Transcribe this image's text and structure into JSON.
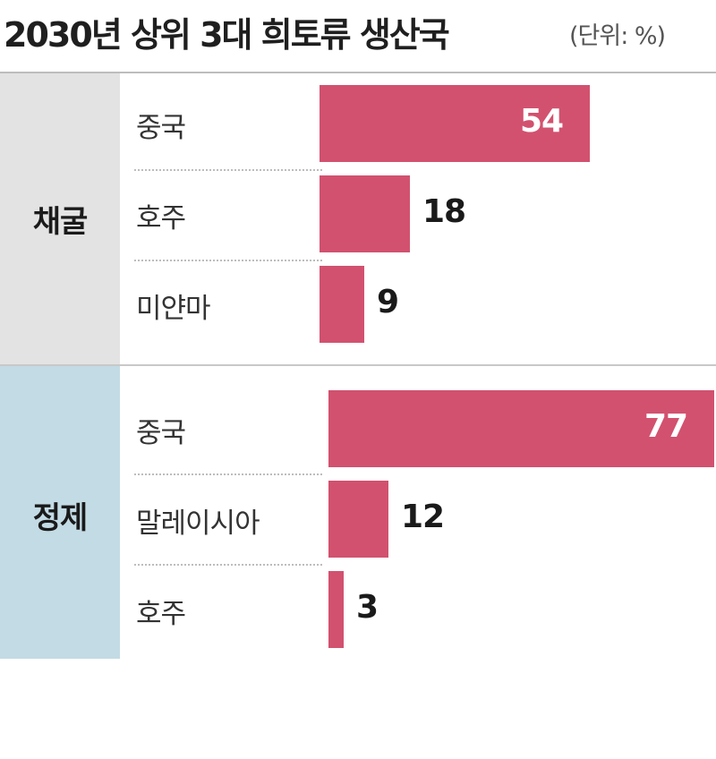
{
  "header": {
    "title": "2030년 상위 3대 희토류 생산국",
    "unit": "(단위: %)"
  },
  "colors": {
    "bar": "#d2516f",
    "mining_panel": "#e3e3e3",
    "refining_panel": "#c3dbe5"
  },
  "chart_data": {
    "type": "bar",
    "orientation": "horizontal",
    "title": "2030년 상위 3대 희토류 생산국",
    "unit": "(단위: %)",
    "groups": [
      {
        "label": "채굴",
        "categories": [
          "중국",
          "호주",
          "미얀마"
        ],
        "values": [
          54,
          18,
          9
        ]
      },
      {
        "label": "정제",
        "categories": [
          "중국",
          "말레이시아",
          "호주"
        ],
        "values": [
          77,
          12,
          3
        ]
      }
    ]
  }
}
